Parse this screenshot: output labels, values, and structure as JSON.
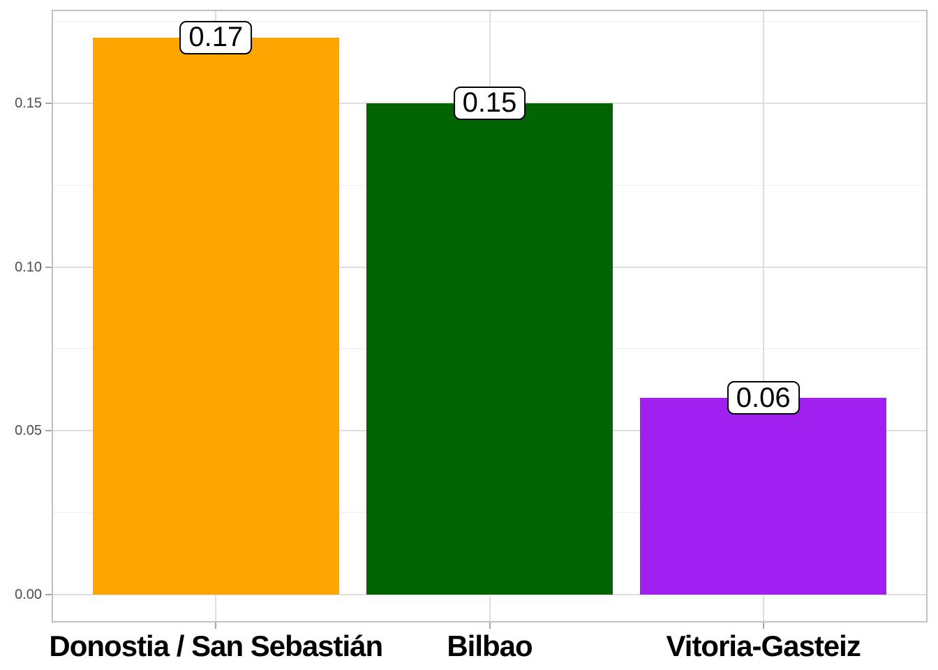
{
  "chart_data": {
    "type": "bar",
    "title": "",
    "xlabel": "",
    "ylabel": "",
    "categories": [
      "Donostia / San Sebastián",
      "Bilbao",
      "Vitoria-Gasteiz"
    ],
    "values": [
      0.17,
      0.15,
      0.06
    ],
    "value_labels": [
      "0.17",
      "0.15",
      "0.06"
    ],
    "bar_colors": [
      "#FFA500",
      "#006400",
      "#A020F0"
    ],
    "y_ticks": [
      0,
      0.05,
      0.1,
      0.15
    ],
    "y_tick_labels": [
      "0.00",
      "0.05",
      "0.10",
      "0.15"
    ],
    "y_minor_ticks": [
      0.025,
      0.075,
      0.125,
      0.175
    ],
    "ylim": [
      -0.0085,
      0.1785
    ],
    "grid": "on",
    "legend": "none",
    "colors": {
      "panel_background": "#FFFFFF",
      "grid_major": "#DEDEDE",
      "grid_minor": "#EFEFEF",
      "panel_border": "#C2C2C2",
      "axis_tick": "#A6A6A6",
      "y_tick_label": "#4D4D4D",
      "x_category_label": "#000000",
      "value_label_bg": "#FFFFFF",
      "value_label_border": "#000000"
    }
  }
}
